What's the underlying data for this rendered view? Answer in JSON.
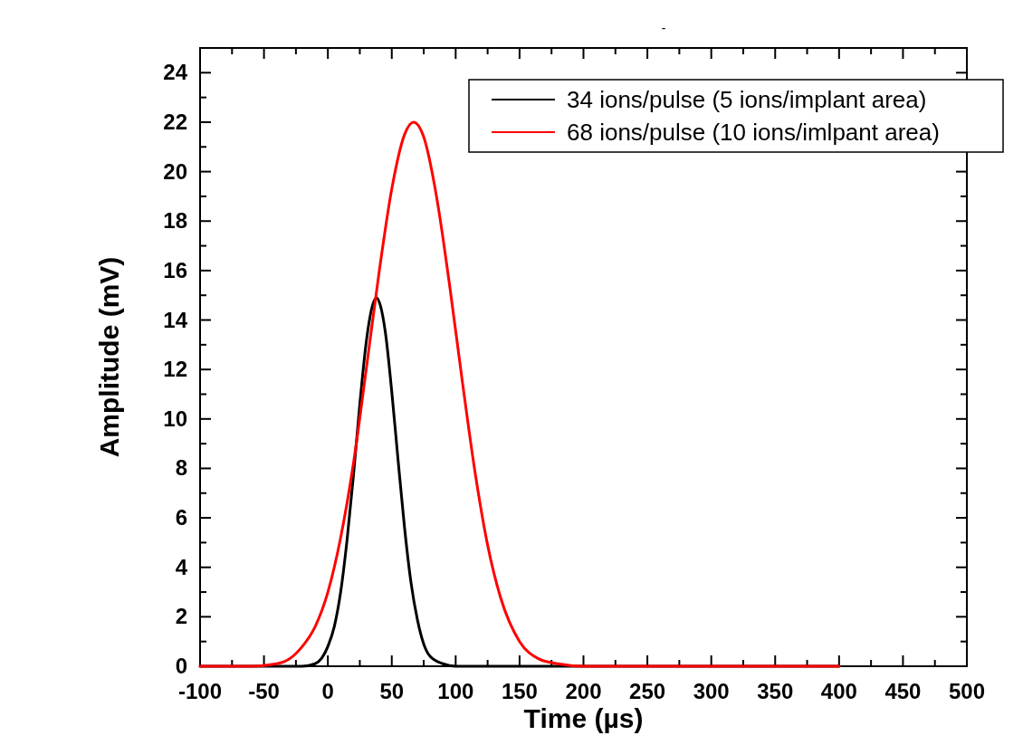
{
  "chart_data": {
    "type": "line",
    "title": "-",
    "xlabel": "Time (µs)",
    "ylabel": "Amplitude (mV)",
    "xlim": [
      -100,
      500
    ],
    "xticks": [
      -100,
      -50,
      0,
      50,
      100,
      150,
      200,
      250,
      300,
      350,
      400,
      450,
      500
    ],
    "ylim": [
      0,
      25
    ],
    "yticks": [
      0,
      2,
      4,
      6,
      8,
      10,
      12,
      14,
      16,
      18,
      20,
      22,
      24
    ],
    "grid": false,
    "legend": "top right",
    "marker": "none",
    "line_style": "solid",
    "series": [
      {
        "name": "34 ions/pulse (5 ions/implant area)",
        "color": "#000000",
        "x": [
          -100,
          -20,
          -10,
          0,
          5,
          10,
          15,
          20,
          25,
          30,
          35,
          38,
          41,
          45,
          50,
          55,
          60,
          65,
          70,
          75,
          80,
          90,
          100,
          120,
          400
        ],
        "values": [
          0,
          0,
          0.1,
          0.8,
          1.6,
          3.0,
          5.1,
          7.7,
          10.6,
          13.1,
          14.6,
          14.9,
          14.6,
          13.5,
          11.1,
          8.3,
          5.6,
          3.4,
          1.9,
          0.9,
          0.4,
          0.1,
          0,
          0,
          0
        ]
      },
      {
        "name": "68 ions/pulse (10 ions/imlpant area)",
        "color": "#ff0000",
        "x": [
          -100,
          -60,
          -40,
          -30,
          -20,
          -10,
          0,
          10,
          20,
          30,
          40,
          50,
          60,
          67,
          75,
          85,
          95,
          105,
          115,
          125,
          135,
          150,
          165,
          180,
          200,
          400
        ],
        "values": [
          0,
          0,
          0.1,
          0.3,
          0.8,
          1.6,
          3.0,
          5.2,
          8.2,
          12.0,
          15.9,
          19.3,
          21.5,
          22,
          21.4,
          19.0,
          15.5,
          11.6,
          7.9,
          4.9,
          2.8,
          1.0,
          0.3,
          0.1,
          0,
          0
        ]
      }
    ]
  }
}
